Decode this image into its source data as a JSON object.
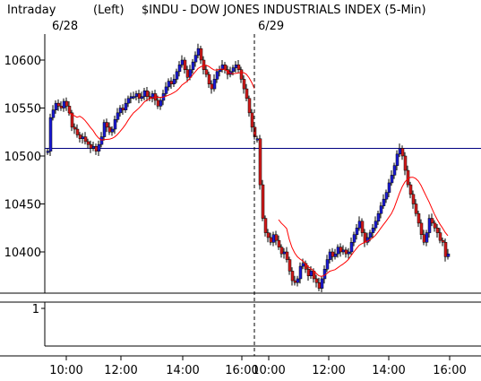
{
  "chart_data": {
    "type": "candlestick",
    "title": "$INDU - DOW JONES INDUSTRIALS INDEX  (5-Min)",
    "period_label": "Intraday",
    "scale_label": "(Left)",
    "session_labels": [
      "6/28",
      "6/29"
    ],
    "y_ticks": [
      10400,
      10450,
      10500,
      10550,
      10600
    ],
    "y_range": [
      10355,
      10625
    ],
    "x_ticks": [
      "10:00",
      "12:00",
      "14:00",
      "16:00",
      "10:00",
      "12:00",
      "14:00",
      "16:00"
    ],
    "reference_line": 10508,
    "lower_panel_tick": "1",
    "colors": {
      "up": "#1a1ad6",
      "down": "#d41a1a",
      "ma": "#ff0000",
      "reference": "#000080"
    },
    "sessions": [
      {
        "date": "6/28",
        "closes": [
          10505,
          10540,
          10548,
          10555,
          10552,
          10550,
          10557,
          10552,
          10545,
          10530,
          10528,
          10522,
          10518,
          10520,
          10515,
          10512,
          10508,
          10510,
          10505,
          10512,
          10520,
          10535,
          10530,
          10525,
          10528,
          10538,
          10545,
          10550,
          10548,
          10555,
          10560,
          10562,
          10562,
          10565,
          10560,
          10562,
          10568,
          10562,
          10560,
          10565,
          10558,
          10552,
          10558,
          10565,
          10572,
          10578,
          10575,
          10580,
          10588,
          10595,
          10600,
          10590,
          10582,
          10590,
          10598,
          10605,
          10612,
          10600,
          10590,
          10585,
          10575,
          10570,
          10580,
          10588,
          10590,
          10595,
          10590,
          10585,
          10588,
          10592,
          10595,
          10590,
          10580,
          10570,
          10560,
          10545,
          10530,
          10520
        ]
      },
      {
        "date": "6/29",
        "closes": [
          10518,
          10470,
          10435,
          10420,
          10415,
          10410,
          10418,
          10412,
          10405,
          10398,
          10400,
          10392,
          10380,
          10370,
          10368,
          10372,
          10385,
          10388,
          10382,
          10375,
          10380,
          10372,
          10368,
          10362,
          10372,
          10382,
          10392,
          10400,
          10395,
          10398,
          10405,
          10400,
          10402,
          10398,
          10400,
          10410,
          10418,
          10425,
          10432,
          10420,
          10410,
          10415,
          10420,
          10425,
          10432,
          10440,
          10448,
          10455,
          10462,
          10472,
          10480,
          10490,
          10502,
          10508,
          10500,
          10485,
          10470,
          10460,
          10450,
          10440,
          10430,
          10418,
          10410,
          10420,
          10435,
          10430,
          10425,
          10420,
          10412,
          10410,
          10395,
          10398
        ]
      }
    ]
  }
}
